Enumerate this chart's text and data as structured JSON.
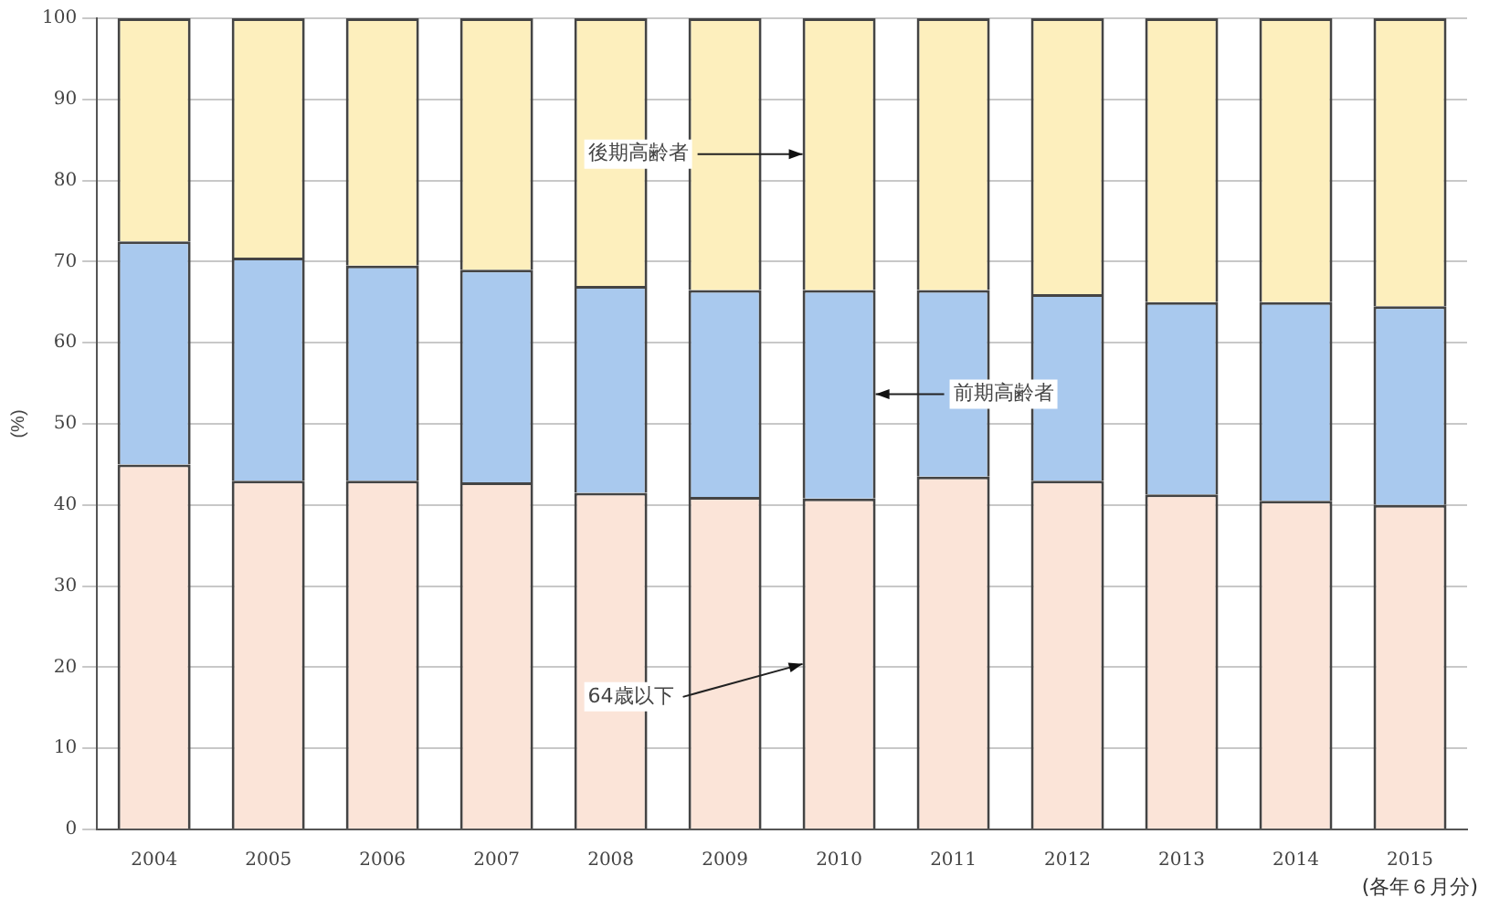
{
  "chart_data": {
    "type": "bar",
    "stacked": true,
    "ylabel": "(%)",
    "categories": [
      "2004",
      "2005",
      "2006",
      "2007",
      "2008",
      "2009",
      "2010",
      "2011",
      "2012",
      "2013",
      "2014",
      "2015"
    ],
    "series": [
      {
        "name": "64歳以下",
        "color": "#fbe4d8",
        "values": [
          45,
          43,
          43,
          42.8,
          41.5,
          41,
          40.8,
          43.5,
          43,
          41.3,
          40.5,
          40
        ]
      },
      {
        "name": "前期高齢者",
        "color": "#a9c9ee",
        "values": [
          27.5,
          27.5,
          26.5,
          26.2,
          25.5,
          25.5,
          25.7,
          23,
          23,
          23.7,
          24.5,
          24.5
        ]
      },
      {
        "name": "後期高齢者",
        "color": "#fdefbd",
        "values": [
          27.5,
          29.5,
          30.5,
          31,
          33,
          33.5,
          33.5,
          33.5,
          34,
          35,
          35,
          35.5
        ]
      }
    ],
    "ylim": [
      0,
      100
    ],
    "yticks": [
      0,
      10,
      20,
      30,
      40,
      50,
      60,
      70,
      80,
      90,
      100
    ],
    "grid": "y",
    "legend": false,
    "annotations": [
      "(各年６月分)"
    ]
  }
}
